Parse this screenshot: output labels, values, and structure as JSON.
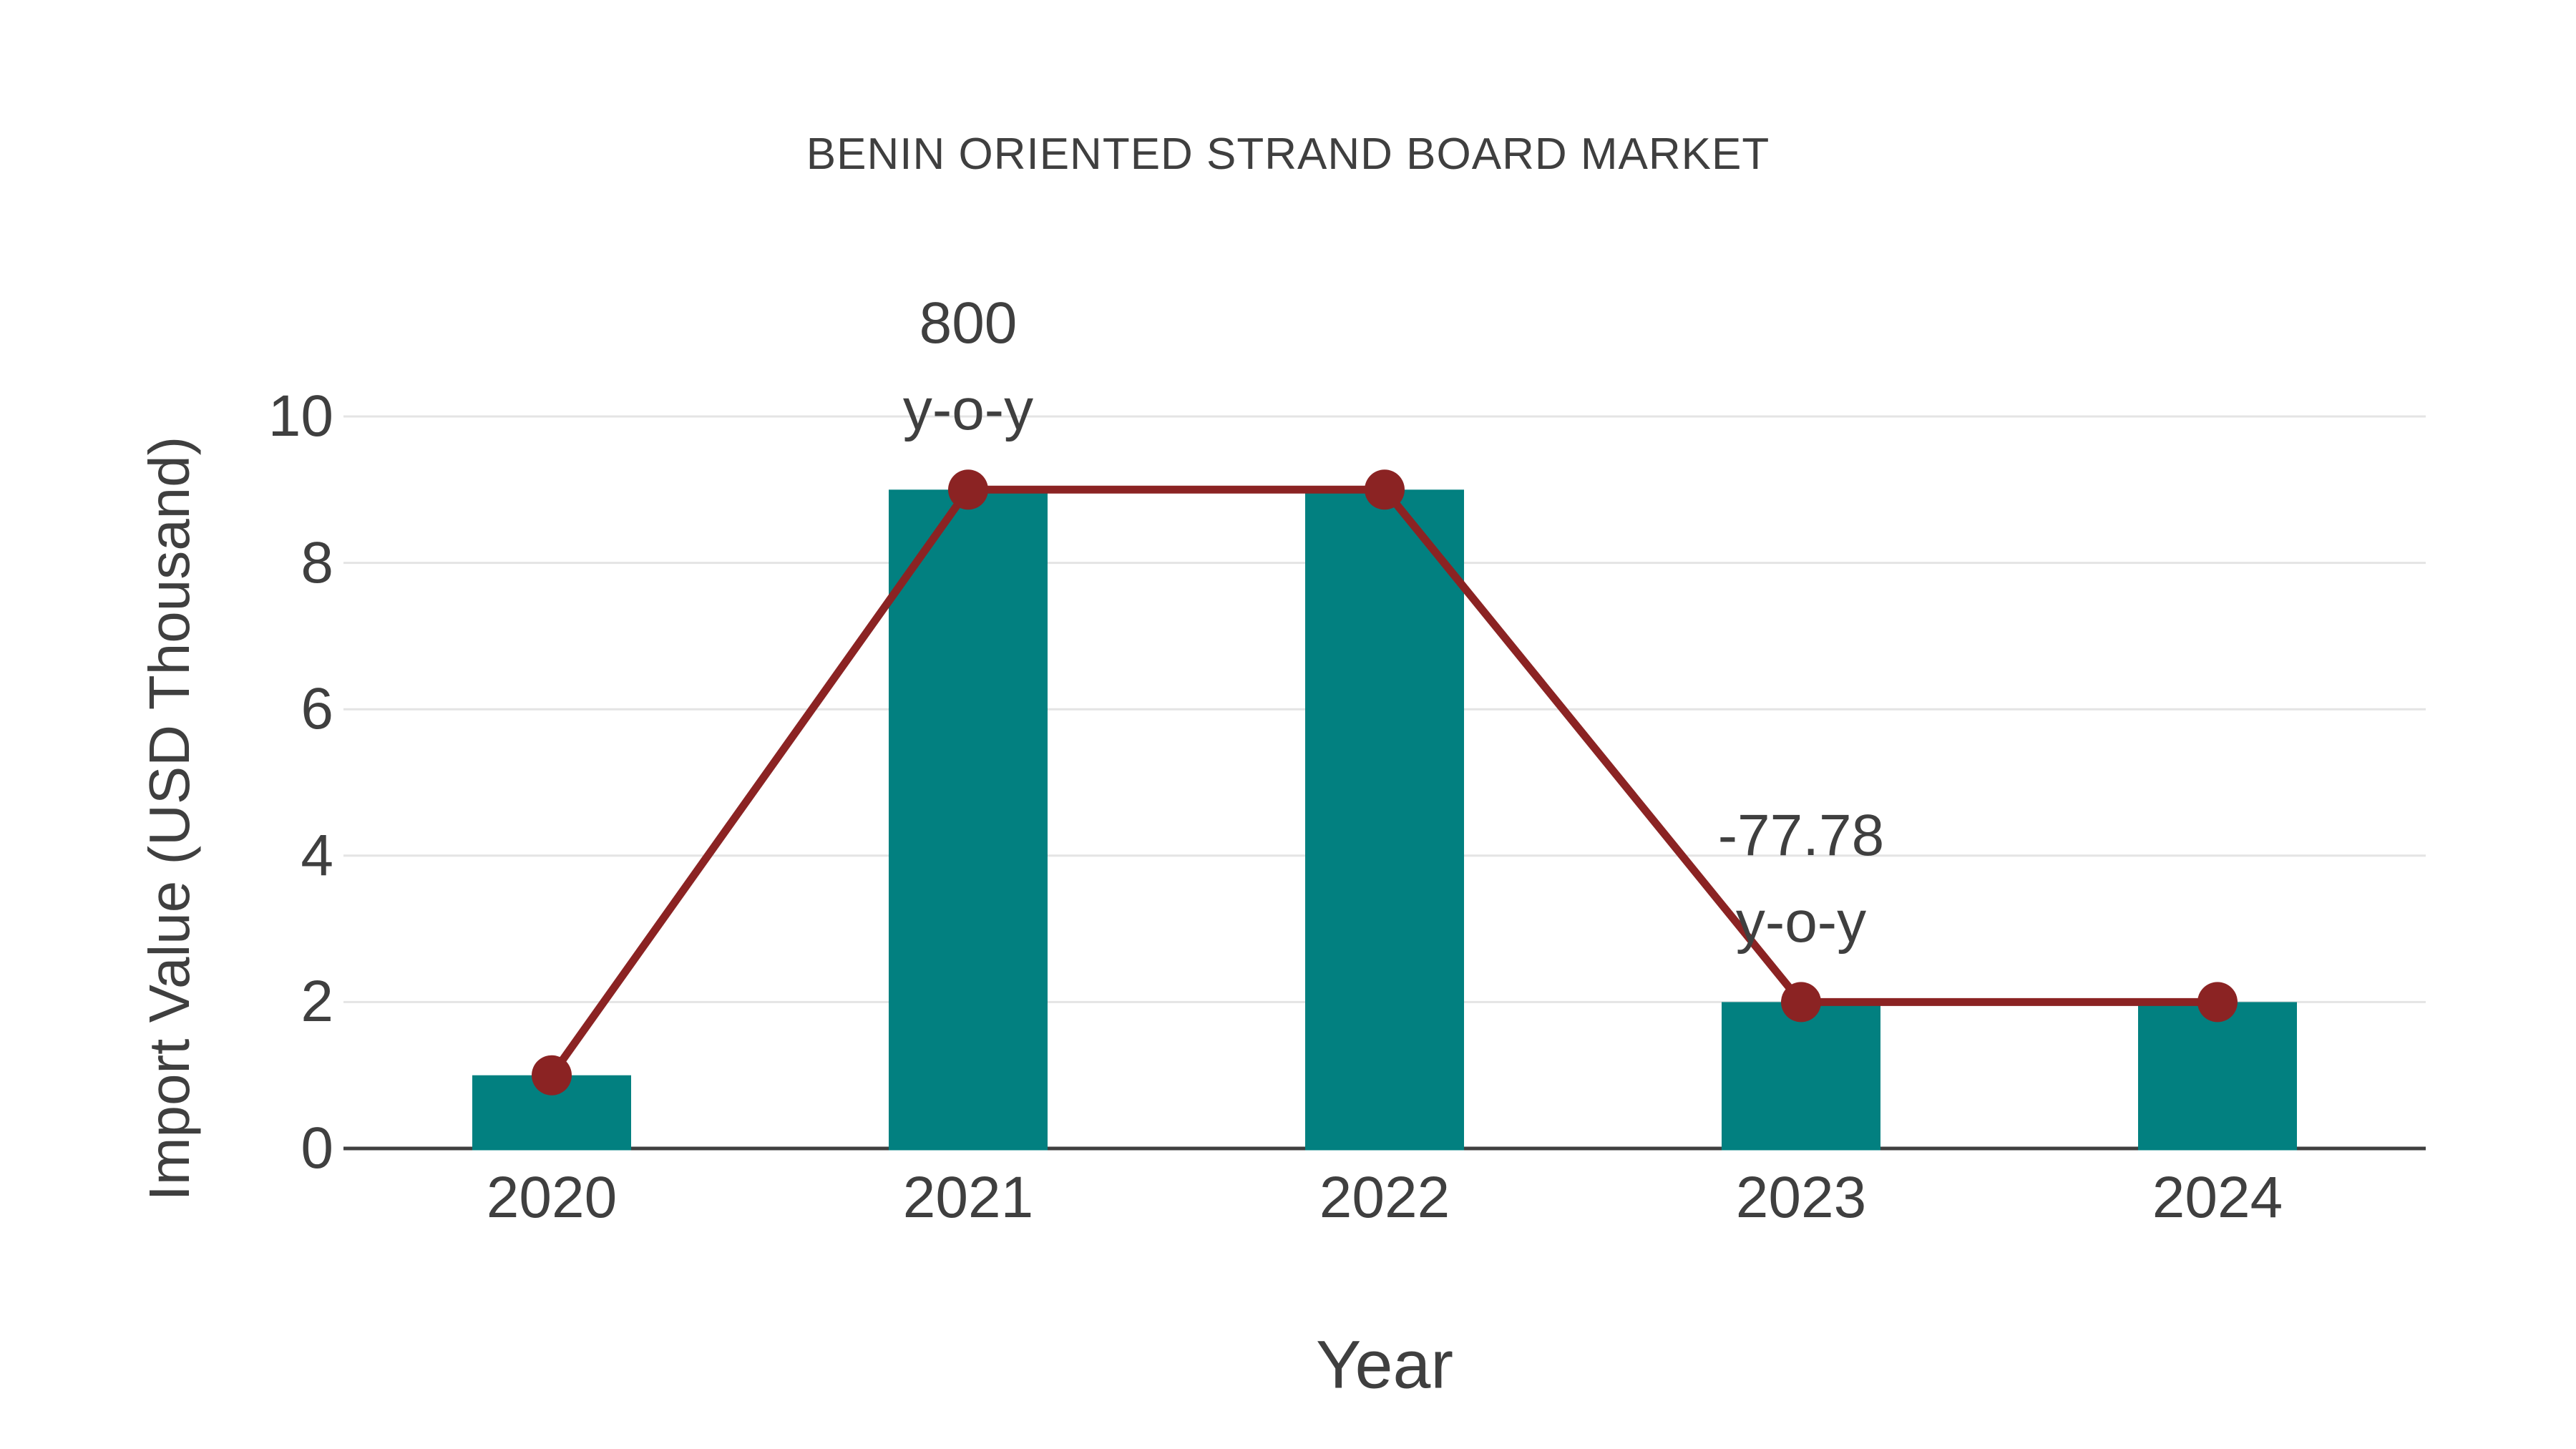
{
  "chart_data": {
    "type": "bar",
    "title": "BENIN ORIENTED STRAND BOARD MARKET",
    "xlabel": "Year",
    "ylabel": "Import Value (USD Thousand)",
    "categories": [
      "2020",
      "2021",
      "2022",
      "2023",
      "2024"
    ],
    "series": [
      {
        "name": "import-value-bars",
        "type": "bar",
        "values": [
          1,
          9,
          9,
          2,
          2
        ],
        "color": "#028080"
      },
      {
        "name": "import-value-trend-line",
        "type": "line",
        "values": [
          1,
          9,
          9,
          2,
          2
        ],
        "color": "#8b2323"
      }
    ],
    "yticks": [
      0,
      2,
      4,
      6,
      8,
      10
    ],
    "ylim": [
      0,
      10
    ],
    "grid": true,
    "legend_position": "none",
    "annotations": [
      {
        "category": "2021",
        "lines": [
          "800",
          "y-o-y"
        ]
      },
      {
        "category": "2023",
        "lines": [
          "-77.78",
          "y-o-y"
        ]
      }
    ],
    "colors": {
      "bar": "#028080",
      "line": "#8b2323",
      "marker": "#8b2323",
      "text": "#3f3f3f",
      "grid": "#e4e4e4",
      "axis": "#3f3f3f",
      "background": "#ffffff"
    }
  }
}
